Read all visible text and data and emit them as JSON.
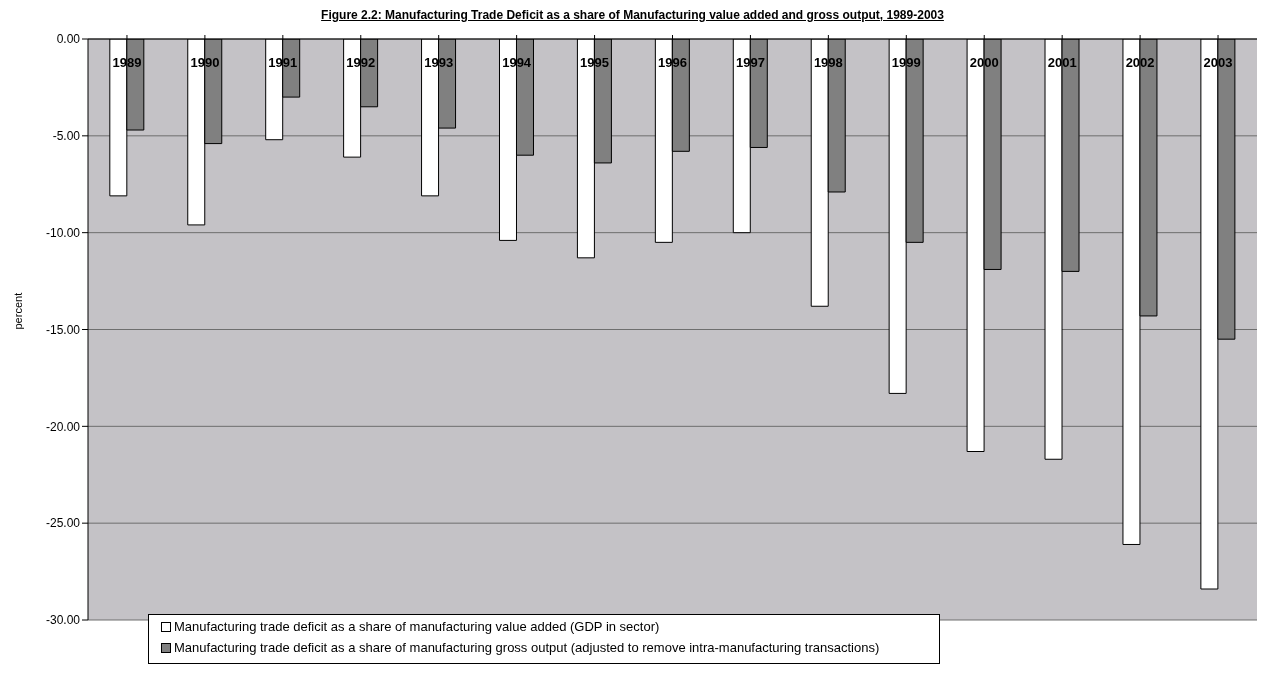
{
  "chart_data": {
    "type": "bar",
    "title": "Figure 2.2: Manufacturing Trade Deficit as a share of Manufacturing value added and gross output, 1989-2003",
    "ylabel": "percent",
    "categories": [
      "1989",
      "1990",
      "1991",
      "1992",
      "1993",
      "1994",
      "1995",
      "1996",
      "1997",
      "1998",
      "1999",
      "2000",
      "2001",
      "2002",
      "2003"
    ],
    "series": [
      {
        "name": "Manufacturing trade deficit as a share of manufacturing value added (GDP in sector)",
        "color": "#ffffff",
        "values": [
          -8.1,
          -9.6,
          -5.2,
          -6.1,
          -8.1,
          -10.4,
          -11.3,
          -10.5,
          -10.0,
          -13.8,
          -18.3,
          -21.3,
          -21.7,
          -26.1,
          -28.4
        ]
      },
      {
        "name": "Manufacturing trade deficit as a share of manufacturing gross output (adjusted to remove intra-manufacturing transactions)",
        "color": "#808080",
        "values": [
          -4.7,
          -5.4,
          -3.0,
          -3.5,
          -4.6,
          -6.0,
          -6.4,
          -5.8,
          -5.6,
          -7.9,
          -10.5,
          -11.9,
          -12.0,
          -14.3,
          -15.5
        ]
      }
    ],
    "ylim": [
      -30,
      0
    ],
    "yticks": [
      {
        "value": 0,
        "label": "0.00"
      },
      {
        "value": -5,
        "label": "-5.00"
      },
      {
        "value": -10,
        "label": "-10.00"
      },
      {
        "value": -15,
        "label": "-15.00"
      },
      {
        "value": -20,
        "label": "-20.00"
      },
      {
        "value": -25,
        "label": "-25.00"
      },
      {
        "value": -30,
        "label": "-30.00"
      }
    ],
    "grid": "y",
    "legend": "bottom left"
  }
}
